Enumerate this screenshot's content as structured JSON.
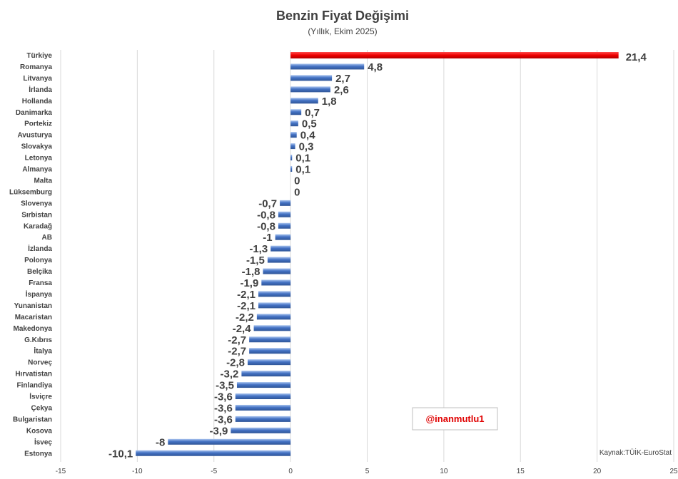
{
  "chart_data": {
    "type": "bar",
    "orientation": "horizontal",
    "title": "Benzin Fiyat Değişimi",
    "subtitle": "(Yıllık, Ekim 2025)",
    "xlim": [
      -15,
      25
    ],
    "x_ticks": [
      -15,
      -10,
      -5,
      0,
      5,
      10,
      15,
      20,
      25
    ],
    "grid": true,
    "categories": [
      "Türkiye",
      "Romanya",
      "Litvanya",
      "İrlanda",
      "Hollanda",
      "Danimarka",
      "Portekiz",
      "Avusturya",
      "Slovakya",
      "Letonya",
      "Almanya",
      "Malta",
      "Lüksemburg",
      "Slovenya",
      "Sırbistan",
      "Karadağ",
      "AB",
      "İzlanda",
      "Polonya",
      "Belçika",
      "Fransa",
      "İspanya",
      "Yunanistan",
      "Macaristan",
      "Makedonya",
      "G.Kıbrıs",
      "İtalya",
      "Norveç",
      "Hırvatistan",
      "Finlandiya",
      "İsviçre",
      "Çekya",
      "Bulgaristan",
      "Kosova",
      "İsveç",
      "Estonya"
    ],
    "values": [
      21.4,
      4.8,
      2.7,
      2.6,
      1.8,
      0.7,
      0.5,
      0.4,
      0.3,
      0.1,
      0.1,
      0,
      0,
      -0.7,
      -0.8,
      -0.8,
      -1,
      -1.3,
      -1.5,
      -1.8,
      -1.9,
      -2.1,
      -2.1,
      -2.2,
      -2.4,
      -2.7,
      -2.7,
      -2.8,
      -3.2,
      -3.5,
      -3.6,
      -3.6,
      -3.6,
      -3.9,
      -8,
      -10.1
    ],
    "value_labels": [
      "21,4",
      "4,8",
      "2,7",
      "2,6",
      "1,8",
      "0,7",
      "0,5",
      "0,4",
      "0,3",
      "0,1",
      "0,1",
      "0",
      "0",
      "-0,7",
      "-0,8",
      "-0,8",
      "-1",
      "-1,3",
      "-1,5",
      "-1,8",
      "-1,9",
      "-2,1",
      "-2,1",
      "-2,2",
      "-2,4",
      "-2,7",
      "-2,7",
      "-2,8",
      "-3,2",
      "-3,5",
      "-3,6",
      "-3,6",
      "-3,6",
      "-3,9",
      "-8",
      "-10,1"
    ],
    "highlight": {
      "Türkiye": "#ee0000",
      "AB": "#4472c4"
    },
    "colors": {
      "bar": "#4472c4",
      "bar_light": "#8fb0e6",
      "highlight_bar": "#ee0000",
      "label": "#404040",
      "grid": "#d9d9d9"
    }
  },
  "source_text": "Kaynak:TÜİK-EuroStat",
  "handle_text": "@inanmutlu1"
}
